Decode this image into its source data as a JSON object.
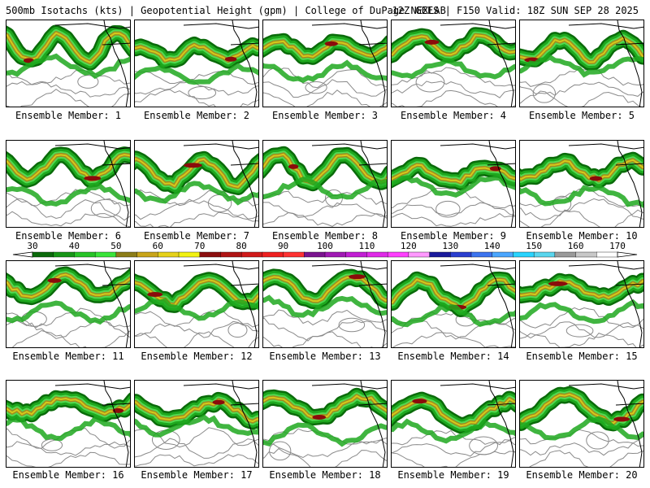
{
  "header": {
    "left": "500mb Isotachs (kts) | Geopotential Height (gpm) | College of DuPage NEXLAB",
    "right": "12Z GEFS | F150 Valid: 18Z SUN SEP 28 2025"
  },
  "colorbar": {
    "tick_labels": [
      "30",
      "40",
      "50",
      "60",
      "70",
      "80",
      "90",
      "100",
      "110",
      "120",
      "130",
      "140",
      "150",
      "160",
      "170"
    ],
    "colors": [
      "#0b6a0b",
      "#179617",
      "#27c427",
      "#3ae43a",
      "#8c7d18",
      "#c9a51a",
      "#e6d21a",
      "#f2f212",
      "#8c0f0f",
      "#b01414",
      "#d11a1a",
      "#ef2020",
      "#ff3333",
      "#7a148f",
      "#a01ab4",
      "#c21fd4",
      "#e02ae8",
      "#ff40ff",
      "#ff99ff",
      "#1a1a9c",
      "#2a3fd0",
      "#3c74ef",
      "#4aa6ff",
      "#29d4ff",
      "#5ad6ee",
      "#9a9a9a",
      "#c8c8c8",
      "#ffffff"
    ]
  },
  "map_colors": {
    "green_dark": "#0a6b0a",
    "green": "#1ea81e",
    "green_light": "#52d952",
    "olive": "#a08c1e",
    "yellow": "#d6c81a",
    "red_dark": "#8b0b0b",
    "contour": "#8a8a8a",
    "coast": "#000000"
  },
  "members": [
    {
      "label": "Ensemble Member: 1"
    },
    {
      "label": "Ensemble Member: 2"
    },
    {
      "label": "Ensemble Member: 3"
    },
    {
      "label": "Ensemble Member: 4"
    },
    {
      "label": "Ensemble Member: 5"
    },
    {
      "label": "Ensemble Member: 6"
    },
    {
      "label": "Ensemble Member: 7"
    },
    {
      "label": "Ensemble Member: 8"
    },
    {
      "label": "Ensemble Member: 9"
    },
    {
      "label": "Ensemble Member: 10"
    },
    {
      "label": "Ensemble Member: 11"
    },
    {
      "label": "Ensemble Member: 12"
    },
    {
      "label": "Ensemble Member: 13"
    },
    {
      "label": "Ensemble Member: 14"
    },
    {
      "label": "Ensemble Member: 15"
    },
    {
      "label": "Ensemble Member: 16"
    },
    {
      "label": "Ensemble Member: 17"
    },
    {
      "label": "Ensemble Member: 18"
    },
    {
      "label": "Ensemble Member: 19"
    },
    {
      "label": "Ensemble Member: 20"
    }
  ]
}
